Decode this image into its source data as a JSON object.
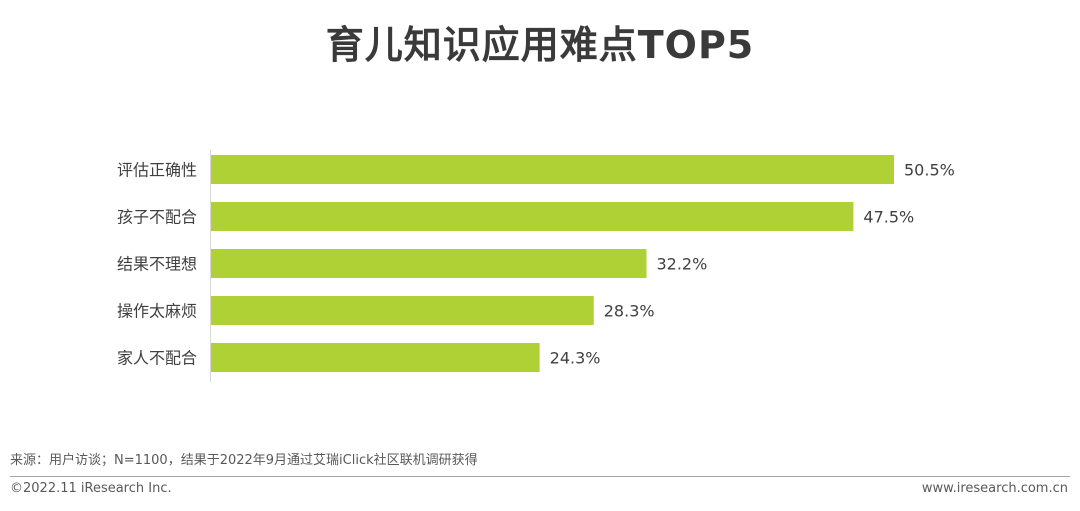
{
  "header": {
    "title": "育儿知识应用难点TOP5"
  },
  "chart_data": {
    "type": "bar",
    "orientation": "horizontal",
    "categories": [
      "评估正确性",
      "孩子不配合",
      "结果不理想",
      "操作太麻烦",
      "家人不配合"
    ],
    "values": [
      50.5,
      47.5,
      32.2,
      28.3,
      24.3
    ],
    "value_labels": [
      "50.5%",
      "47.5%",
      "32.2%",
      "28.3%",
      "24.3%"
    ],
    "unit": "%",
    "bar_color": "#b0d136",
    "xlim": [
      0,
      50.5
    ],
    "grid": false,
    "legend": "none"
  },
  "footer": {
    "source": "来源：用户访谈；N=1100，结果于2022年9月通过艾瑞iClick社区联机调研获得",
    "copyright": "©2022.11 iResearch Inc.",
    "website": "www.iresearch.com.cn"
  }
}
